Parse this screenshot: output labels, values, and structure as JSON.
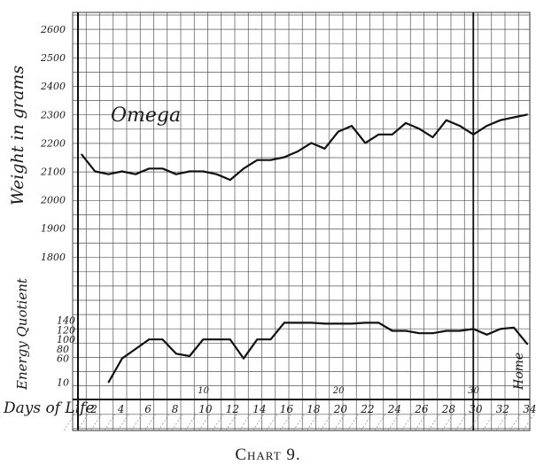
{
  "caption": "Chart 9.",
  "chart_data": [
    {
      "type": "line",
      "title": "Omega",
      "ylabel": "Weight in grams",
      "ylim": [
        1700,
        2600
      ],
      "yticks": [
        "1800",
        "1900",
        "2000",
        "2100",
        "2200",
        "2300",
        "2400",
        "2500",
        "2600"
      ],
      "xlabel": "Days of Life",
      "xlim": [
        1,
        34
      ],
      "xticks": [
        "2",
        "4",
        "6",
        "8",
        "10",
        "12",
        "14",
        "16",
        "18",
        "20",
        "22",
        "24",
        "26",
        "28",
        "30",
        "32",
        "34"
      ],
      "grid": true,
      "series": [
        {
          "x": [
            1,
            2,
            3,
            4,
            5,
            6,
            7,
            8,
            9,
            10,
            11,
            12,
            13,
            14,
            15,
            16,
            17,
            18,
            19,
            20,
            21,
            22,
            23,
            24,
            25,
            26,
            27,
            28,
            29,
            30,
            31,
            32,
            33,
            34
          ],
          "y": [
            2160,
            2100,
            2090,
            2100,
            2090,
            2110,
            2110,
            2090,
            2100,
            2100,
            2090,
            2070,
            2110,
            2140,
            2140,
            2150,
            2170,
            2200,
            2180,
            2240,
            2260,
            2200,
            2230,
            2230,
            2270,
            2250,
            2220,
            2280,
            2260,
            2230,
            2260,
            2280,
            2290,
            2300
          ]
        }
      ]
    },
    {
      "type": "line",
      "ylabel": "Energy Quotient",
      "ylim": [
        0,
        150
      ],
      "yticks": [
        "10",
        "60",
        "80",
        "100",
        "120",
        "140"
      ],
      "xlabel": "Days of Life",
      "xlim": [
        1,
        34
      ],
      "marker_labels": [
        "10",
        "20",
        "30"
      ],
      "annotation": "Home",
      "grid": true,
      "series": [
        {
          "x": [
            3,
            4,
            5,
            6,
            7,
            8,
            9,
            10,
            11,
            12,
            13,
            14,
            15,
            16,
            17,
            18,
            19,
            20,
            21,
            22,
            23,
            24,
            25,
            26,
            27,
            28,
            29,
            30,
            31,
            32,
            33,
            34
          ],
          "y": [
            10,
            60,
            80,
            100,
            100,
            70,
            65,
            100,
            100,
            100,
            60,
            100,
            100,
            135,
            135,
            135,
            133,
            133,
            133,
            135,
            135,
            118,
            118,
            113,
            113,
            118,
            118,
            122,
            110,
            122,
            125,
            90
          ]
        }
      ]
    }
  ]
}
